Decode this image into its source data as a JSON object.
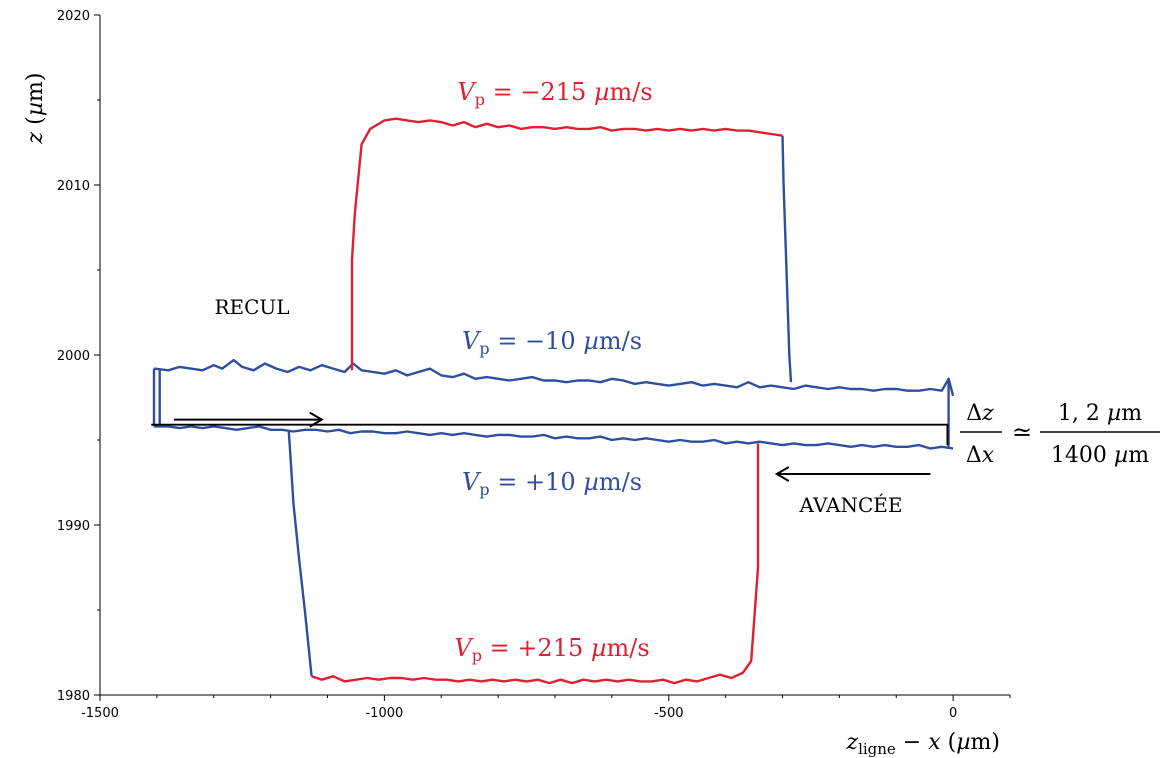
{
  "chart_data": {
    "type": "line",
    "xlabel": "z_ligne − x (µm)",
    "ylabel": "z (µm)",
    "xlim": [
      -1500,
      100
    ],
    "ylim": [
      1980,
      2020
    ],
    "xticks": [
      -1500,
      -1000,
      -500,
      0
    ],
    "yticks": [
      1980,
      1990,
      2000,
      2010,
      2020
    ],
    "grid": false,
    "colors": {
      "blue": "#2e4fa0",
      "red": "#e02030",
      "black": "#000000"
    },
    "labels": {
      "vp_minus_215": "−215",
      "vp_minus_10": "−10",
      "vp_plus_10": "+10",
      "vp_plus_215": "+215",
      "unit": "µm/s",
      "recul": "RECUL",
      "avancee": "AVANCÉE"
    },
    "formula": {
      "num": "1, 2",
      "den": "1400",
      "unit": "µm"
    },
    "series": [
      {
        "name": "−10 µm/s",
        "color": "#2e4fa0",
        "points": [
          [
            -1405,
            1999.2
          ],
          [
            -1380,
            1999.1
          ],
          [
            -1360,
            1999.3
          ],
          [
            -1340,
            1999.2
          ],
          [
            -1320,
            1999.1
          ],
          [
            -1300,
            1999.4
          ],
          [
            -1285,
            1999.2
          ],
          [
            -1265,
            1999.7
          ],
          [
            -1250,
            1999.3
          ],
          [
            -1230,
            1999.1
          ],
          [
            -1210,
            1999.5
          ],
          [
            -1190,
            1999.2
          ],
          [
            -1170,
            1999.0
          ],
          [
            -1150,
            1999.3
          ],
          [
            -1130,
            1999.1
          ],
          [
            -1110,
            1999.4
          ],
          [
            -1090,
            1999.2
          ],
          [
            -1070,
            1999.0
          ],
          [
            -1055,
            1999.5
          ],
          [
            -1040,
            1999.1
          ],
          [
            -1020,
            1999.0
          ],
          [
            -1000,
            1998.9
          ],
          [
            -980,
            1999.1
          ],
          [
            -960,
            1998.8
          ],
          [
            -940,
            1999.0
          ],
          [
            -920,
            1999.2
          ],
          [
            -900,
            1998.8
          ],
          [
            -880,
            1998.7
          ],
          [
            -860,
            1998.9
          ],
          [
            -840,
            1998.6
          ],
          [
            -820,
            1998.7
          ],
          [
            -800,
            1998.6
          ],
          [
            -780,
            1998.5
          ],
          [
            -760,
            1998.6
          ],
          [
            -740,
            1998.7
          ],
          [
            -720,
            1998.5
          ],
          [
            -700,
            1998.5
          ],
          [
            -680,
            1998.4
          ],
          [
            -660,
            1998.5
          ],
          [
            -640,
            1998.5
          ],
          [
            -620,
            1998.4
          ],
          [
            -600,
            1998.6
          ],
          [
            -580,
            1998.5
          ],
          [
            -560,
            1998.3
          ],
          [
            -540,
            1998.4
          ],
          [
            -520,
            1998.3
          ],
          [
            -500,
            1998.2
          ],
          [
            -480,
            1998.3
          ],
          [
            -460,
            1998.4
          ],
          [
            -440,
            1998.2
          ],
          [
            -420,
            1998.3
          ],
          [
            -400,
            1998.2
          ],
          [
            -380,
            1998.1
          ],
          [
            -360,
            1998.4
          ],
          [
            -340,
            1998.1
          ],
          [
            -320,
            1998.2
          ],
          [
            -300,
            1998.1
          ],
          [
            -280,
            1998.0
          ],
          [
            -260,
            1998.2
          ],
          [
            -240,
            1998.1
          ],
          [
            -220,
            1998.0
          ],
          [
            -200,
            1998.1
          ],
          [
            -180,
            1998.0
          ],
          [
            -160,
            1998.0
          ],
          [
            -140,
            1997.9
          ],
          [
            -120,
            1998.0
          ],
          [
            -100,
            1998.0
          ],
          [
            -80,
            1997.9
          ],
          [
            -60,
            1997.9
          ],
          [
            -40,
            1998.0
          ],
          [
            -20,
            1997.9
          ],
          [
            -8,
            1998.6
          ],
          [
            0,
            1997.6
          ]
        ]
      },
      {
        "name": "+10 µm/s",
        "color": "#2e4fa0",
        "points": [
          [
            -1405,
            1995.8
          ],
          [
            -1380,
            1995.8
          ],
          [
            -1360,
            1995.7
          ],
          [
            -1340,
            1995.8
          ],
          [
            -1320,
            1995.7
          ],
          [
            -1300,
            1995.8
          ],
          [
            -1280,
            1995.7
          ],
          [
            -1260,
            1995.6
          ],
          [
            -1240,
            1995.7
          ],
          [
            -1220,
            1995.8
          ],
          [
            -1200,
            1995.6
          ],
          [
            -1180,
            1995.6
          ],
          [
            -1160,
            1995.5
          ],
          [
            -1140,
            1995.6
          ],
          [
            -1120,
            1995.6
          ],
          [
            -1100,
            1995.5
          ],
          [
            -1080,
            1995.6
          ],
          [
            -1060,
            1995.4
          ],
          [
            -1040,
            1995.5
          ],
          [
            -1020,
            1995.5
          ],
          [
            -1000,
            1995.4
          ],
          [
            -980,
            1995.4
          ],
          [
            -960,
            1995.5
          ],
          [
            -940,
            1995.4
          ],
          [
            -920,
            1995.3
          ],
          [
            -900,
            1995.4
          ],
          [
            -880,
            1995.3
          ],
          [
            -860,
            1995.4
          ],
          [
            -840,
            1995.3
          ],
          [
            -820,
            1995.2
          ],
          [
            -800,
            1995.3
          ],
          [
            -780,
            1995.3
          ],
          [
            -760,
            1995.2
          ],
          [
            -740,
            1995.2
          ],
          [
            -720,
            1995.3
          ],
          [
            -700,
            1995.1
          ],
          [
            -680,
            1995.2
          ],
          [
            -660,
            1995.1
          ],
          [
            -640,
            1995.1
          ],
          [
            -620,
            1995.2
          ],
          [
            -600,
            1995.0
          ],
          [
            -580,
            1995.1
          ],
          [
            -560,
            1995.0
          ],
          [
            -540,
            1995.1
          ],
          [
            -520,
            1995.0
          ],
          [
            -500,
            1994.9
          ],
          [
            -480,
            1995.0
          ],
          [
            -460,
            1994.9
          ],
          [
            -440,
            1994.9
          ],
          [
            -420,
            1995.0
          ],
          [
            -400,
            1994.8
          ],
          [
            -380,
            1994.9
          ],
          [
            -360,
            1994.8
          ],
          [
            -340,
            1994.9
          ],
          [
            -320,
            1994.8
          ],
          [
            -300,
            1994.7
          ],
          [
            -280,
            1994.8
          ],
          [
            -260,
            1994.7
          ],
          [
            -240,
            1994.7
          ],
          [
            -220,
            1994.8
          ],
          [
            -200,
            1994.7
          ],
          [
            -180,
            1994.6
          ],
          [
            -160,
            1994.7
          ],
          [
            -140,
            1994.6
          ],
          [
            -120,
            1994.7
          ],
          [
            -100,
            1994.6
          ],
          [
            -80,
            1994.6
          ],
          [
            -60,
            1994.7
          ],
          [
            -40,
            1994.5
          ],
          [
            -20,
            1994.6
          ],
          [
            0,
            1994.5
          ]
        ]
      },
      {
        "name": "−215 µm/s",
        "color": "#e02030",
        "points": [
          [
            -1057,
            1999.1
          ],
          [
            -1057,
            2005.6
          ],
          [
            -1052,
            2008.3
          ],
          [
            -1040,
            2012.4
          ],
          [
            -1025,
            2013.3
          ],
          [
            -1000,
            2013.8
          ],
          [
            -980,
            2013.9
          ],
          [
            -960,
            2013.8
          ],
          [
            -940,
            2013.7
          ],
          [
            -920,
            2013.8
          ],
          [
            -900,
            2013.7
          ],
          [
            -880,
            2013.5
          ],
          [
            -860,
            2013.7
          ],
          [
            -840,
            2013.4
          ],
          [
            -820,
            2013.6
          ],
          [
            -800,
            2013.4
          ],
          [
            -780,
            2013.5
          ],
          [
            -760,
            2013.3
          ],
          [
            -740,
            2013.4
          ],
          [
            -720,
            2013.4
          ],
          [
            -700,
            2013.3
          ],
          [
            -680,
            2013.4
          ],
          [
            -660,
            2013.3
          ],
          [
            -640,
            2013.3
          ],
          [
            -620,
            2013.4
          ],
          [
            -600,
            2013.2
          ],
          [
            -580,
            2013.3
          ],
          [
            -560,
            2013.3
          ],
          [
            -540,
            2013.2
          ],
          [
            -520,
            2013.3
          ],
          [
            -500,
            2013.2
          ],
          [
            -480,
            2013.3
          ],
          [
            -460,
            2013.2
          ],
          [
            -440,
            2013.3
          ],
          [
            -420,
            2013.2
          ],
          [
            -400,
            2013.3
          ],
          [
            -380,
            2013.2
          ],
          [
            -360,
            2013.2
          ],
          [
            -340,
            2013.1
          ],
          [
            -320,
            2013.0
          ],
          [
            -300,
            2012.9
          ]
        ]
      },
      {
        "name": "−215 µm/s (descente)",
        "color": "#2e4fa0",
        "points": [
          [
            -300,
            2012.9
          ],
          [
            -298,
            2010.0
          ],
          [
            -293,
            2005.0
          ],
          [
            -288,
            2000.0
          ],
          [
            -285,
            1998.4
          ]
        ]
      },
      {
        "name": "+215 µm/s",
        "color": "#e02030",
        "points": [
          [
            -1128,
            1981.1
          ],
          [
            -1110,
            1980.9
          ],
          [
            -1090,
            1981.1
          ],
          [
            -1070,
            1980.8
          ],
          [
            -1050,
            1980.9
          ],
          [
            -1030,
            1981.0
          ],
          [
            -1010,
            1980.9
          ],
          [
            -990,
            1981.0
          ],
          [
            -970,
            1981.0
          ],
          [
            -950,
            1980.9
          ],
          [
            -930,
            1981.0
          ],
          [
            -910,
            1980.9
          ],
          [
            -890,
            1980.9
          ],
          [
            -870,
            1980.8
          ],
          [
            -850,
            1980.9
          ],
          [
            -830,
            1980.8
          ],
          [
            -810,
            1980.9
          ],
          [
            -790,
            1980.8
          ],
          [
            -770,
            1980.9
          ],
          [
            -750,
            1980.8
          ],
          [
            -730,
            1980.9
          ],
          [
            -710,
            1980.7
          ],
          [
            -690,
            1980.9
          ],
          [
            -670,
            1980.7
          ],
          [
            -650,
            1980.9
          ],
          [
            -630,
            1980.8
          ],
          [
            -610,
            1980.9
          ],
          [
            -590,
            1980.8
          ],
          [
            -570,
            1980.9
          ],
          [
            -550,
            1980.8
          ],
          [
            -530,
            1980.8
          ],
          [
            -510,
            1980.9
          ],
          [
            -490,
            1980.7
          ],
          [
            -470,
            1980.9
          ],
          [
            -450,
            1980.8
          ],
          [
            -430,
            1981.0
          ],
          [
            -410,
            1981.2
          ],
          [
            -390,
            1981.0
          ],
          [
            -370,
            1981.3
          ],
          [
            -355,
            1982.0
          ],
          [
            -343,
            1987.5
          ],
          [
            -343,
            1994.8
          ]
        ]
      },
      {
        "name": "+215 µm/s (montée)",
        "color": "#2e4fa0",
        "points": [
          [
            -1128,
            1981.1
          ],
          [
            -1140,
            1985.0
          ],
          [
            -1150,
            1988.0
          ],
          [
            -1160,
            1991.3
          ],
          [
            -1165,
            1994.0
          ],
          [
            -1168,
            1995.5
          ]
        ]
      },
      {
        "name": "cadre",
        "color": "#2e4fa0",
        "points": [
          [
            -1405,
            1999.2
          ],
          [
            -1405,
            1995.8
          ]
        ]
      },
      {
        "name": "cadre2",
        "color": "#2e4fa0",
        "points": [
          [
            -1395,
            1999.2
          ],
          [
            -1395,
            1995.8
          ]
        ]
      },
      {
        "name": "cadre3",
        "color": "#2e4fa0",
        "points": [
          [
            -8,
            1998.6
          ],
          [
            -8,
            1994.6
          ]
        ]
      },
      {
        "name": "pente",
        "color": "#000000",
        "points": [
          [
            -1410,
            1995.9
          ],
          [
            -10,
            1995.9
          ],
          [
            -10,
            1994.7
          ]
        ]
      }
    ],
    "arrows": [
      {
        "name": "recul-arrow",
        "from": [
          -1370,
          1996.2
        ],
        "to": [
          -1110,
          1996.2
        ]
      },
      {
        "name": "avancee-arrow",
        "from": [
          -40,
          1993.0
        ],
        "to": [
          -310,
          1993.0
        ]
      }
    ]
  }
}
